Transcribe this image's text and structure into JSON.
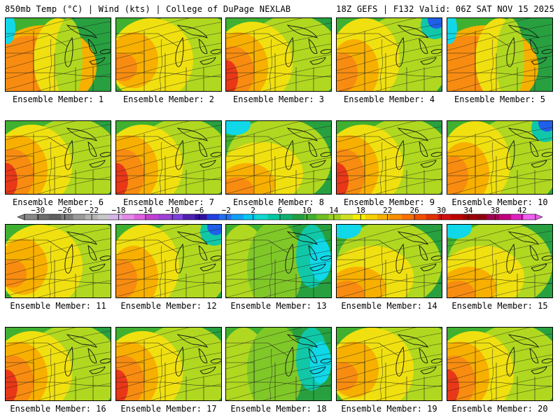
{
  "header": {
    "left": "850mb Temp (°C) | Wind (kts) | College of DuPage NEXLAB",
    "right": "18Z GEFS | F132 Valid: 06Z SAT NOV 15 2025"
  },
  "colorbar": {
    "tick_labels": [
      "−30",
      "−26",
      "−22",
      "−18",
      "−14",
      "−10",
      "−6",
      "−2",
      "2",
      "6",
      "10",
      "14",
      "18",
      "22",
      "26",
      "30",
      "34",
      "38",
      "42"
    ],
    "tick_values": [
      -30,
      -26,
      -22,
      -18,
      -14,
      -10,
      -6,
      -2,
      2,
      6,
      10,
      14,
      18,
      22,
      26,
      30,
      34,
      38,
      42
    ],
    "min": -32,
    "max": 44,
    "step": 2,
    "colors": [
      "#888888",
      "#6d6d6d",
      "#5f5f5f",
      "#7a7a7a",
      "#9a9a9a",
      "#b4b4b4",
      "#c8c8c8",
      "#d8b4ec",
      "#e48ae8",
      "#e060e0",
      "#c040d0",
      "#a040d8",
      "#8040e0",
      "#5020b0",
      "#3010a0",
      "#2040e0",
      "#2070f0",
      "#10a0f8",
      "#00c8f0",
      "#10d8d0",
      "#00c8a0",
      "#10b070",
      "#20a040",
      "#40b030",
      "#70c020",
      "#a0d020",
      "#d0e020",
      "#f8f000",
      "#f8d000",
      "#f8b000",
      "#f89000",
      "#f87000",
      "#f05000",
      "#e03000",
      "#d01010",
      "#c00000",
      "#a00000",
      "#900010",
      "#a00050",
      "#c00080",
      "#e020c0",
      "#f060f0"
    ]
  },
  "members": [
    {
      "label": "Ensemble Member: 1",
      "scheme": 0
    },
    {
      "label": "Ensemble Member: 2",
      "scheme": 1
    },
    {
      "label": "Ensemble Member: 3",
      "scheme": 2
    },
    {
      "label": "Ensemble Member: 4",
      "scheme": 3
    },
    {
      "label": "Ensemble Member: 5",
      "scheme": 0
    },
    {
      "label": "Ensemble Member: 6",
      "scheme": 2
    },
    {
      "label": "Ensemble Member: 7",
      "scheme": 2
    },
    {
      "label": "Ensemble Member: 8",
      "scheme": 4
    },
    {
      "label": "Ensemble Member: 9",
      "scheme": 2
    },
    {
      "label": "Ensemble Member: 10",
      "scheme": 3
    },
    {
      "label": "Ensemble Member: 11",
      "scheme": 1
    },
    {
      "label": "Ensemble Member: 12",
      "scheme": 3
    },
    {
      "label": "Ensemble Member: 13",
      "scheme": 5
    },
    {
      "label": "Ensemble Member: 14",
      "scheme": 4
    },
    {
      "label": "Ensemble Member: 15",
      "scheme": 4
    },
    {
      "label": "Ensemble Member: 16",
      "scheme": 2
    },
    {
      "label": "Ensemble Member: 17",
      "scheme": 2
    },
    {
      "label": "Ensemble Member: 18",
      "scheme": 5
    },
    {
      "label": "Ensemble Member: 19",
      "scheme": 1
    },
    {
      "label": "Ensemble Member: 20",
      "scheme": 2
    }
  ],
  "map_colors": {
    "red": "#e83818",
    "orange": "#f88c10",
    "lightorange": "#f8b000",
    "yellow": "#f0e010",
    "lime": "#b0d820",
    "lightgreen": "#80c828",
    "green": "#40b030",
    "darkgreen": "#28a040",
    "teal": "#10c8a8",
    "cyan": "#10d8e8",
    "blue": "#2060e8",
    "navy": "#2828b8"
  }
}
